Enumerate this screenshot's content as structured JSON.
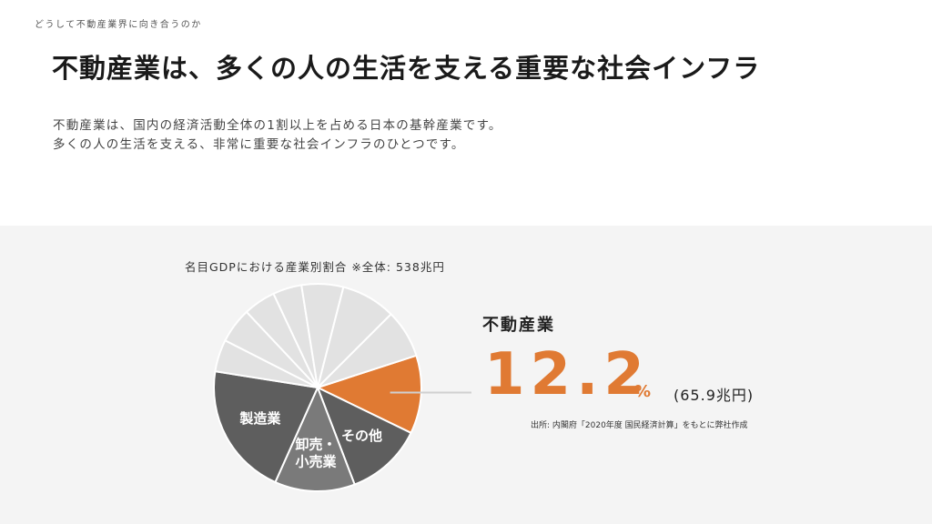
{
  "header": {
    "breadcrumb": "どうして不動産業界に向き合うのか",
    "title": "不動産業は、多くの人の生活を支える重要な社会インフラ",
    "lead": [
      "不動産業は、国内の経済活動全体の1割以上を占める日本の基幹産業です。",
      "多くの人の生活を支える、非常に重要な社会インフラのひとつです。"
    ]
  },
  "highlight": {
    "label": "不動産業",
    "value": "12.2",
    "unit": "%",
    "amount": "(65.9兆円)",
    "source": "出所: 内閣府「2020年度 国民経済計算」をもとに弊社作成"
  },
  "colors": {
    "highlight": "#e07a33",
    "dark": "#5e5e5e",
    "mid": "#7a7a7a",
    "light": "#e2e2e2",
    "band": "#f4f4f4"
  },
  "chart_data": {
    "type": "pie",
    "title": "名目GDPにおける産業別割合 ※全体: 538兆円",
    "slices": [
      {
        "label": "不動産業",
        "value": 12.2,
        "color": "#e07a33",
        "show_label": false
      },
      {
        "label": "その他",
        "value": 12.0,
        "color": "#5e5e5e",
        "show_label": true
      },
      {
        "label": "卸売・\n小売業",
        "value": 12.5,
        "color": "#7a7a7a",
        "show_label": true
      },
      {
        "label": "製造業",
        "value": 20.8,
        "color": "#5e5e5e",
        "show_label": true
      },
      {
        "label": "",
        "value": 5.0,
        "color": "#e2e2e2",
        "show_label": false
      },
      {
        "label": "",
        "value": 5.5,
        "color": "#e2e2e2",
        "show_label": false
      },
      {
        "label": "",
        "value": 5.0,
        "color": "#e2e2e2",
        "show_label": false
      },
      {
        "label": "",
        "value": 4.5,
        "color": "#e2e2e2",
        "show_label": false
      },
      {
        "label": "",
        "value": 6.5,
        "color": "#e2e2e2",
        "show_label": false
      },
      {
        "label": "",
        "value": 8.5,
        "color": "#e2e2e2",
        "show_label": false
      },
      {
        "label": "",
        "value": 7.5,
        "color": "#e2e2e2",
        "show_label": false
      }
    ]
  }
}
